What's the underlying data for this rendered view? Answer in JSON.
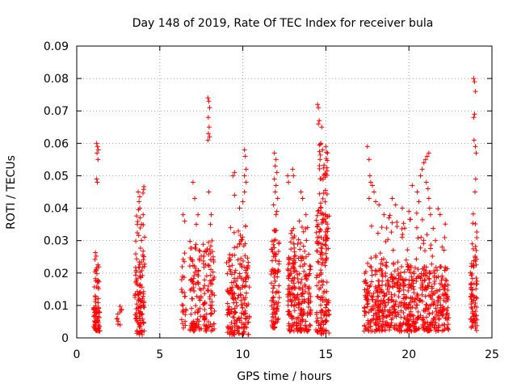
{
  "chart_data": {
    "type": "scatter",
    "title": "Day 148 of 2019, Rate Of TEC Index for receiver bula",
    "xlabel": "GPS time / hours",
    "ylabel": "ROTI / TECUs",
    "xlim": [
      0,
      25
    ],
    "ylim": [
      0,
      0.09
    ],
    "x_ticks": [
      {
        "value": 0,
        "label": "0"
      },
      {
        "value": 5,
        "label": "5"
      },
      {
        "value": 10,
        "label": "10"
      },
      {
        "value": 15,
        "label": "15"
      },
      {
        "value": 20,
        "label": "20"
      },
      {
        "value": 25,
        "label": "25"
      }
    ],
    "y_ticks": [
      {
        "value": 0,
        "label": "0"
      },
      {
        "value": 0.01,
        "label": "0.01"
      },
      {
        "value": 0.02,
        "label": "0.02"
      },
      {
        "value": 0.03,
        "label": "0.03"
      },
      {
        "value": 0.04,
        "label": "0.04"
      },
      {
        "value": 0.05,
        "label": "0.05"
      },
      {
        "value": 0.06,
        "label": "0.06"
      },
      {
        "value": 0.07,
        "label": "0.07"
      },
      {
        "value": 0.08,
        "label": "0.08"
      },
      {
        "value": 0.09,
        "label": "0.09"
      }
    ],
    "grid": true,
    "marker": "+",
    "series": [
      {
        "name": "ROTI",
        "color": "#ff0000",
        "clusters": [
          {
            "x_range": [
              1.0,
              1.4
            ],
            "y_range": [
              0.002,
              0.013
            ],
            "count": 60,
            "seed": 11
          },
          {
            "x_range": [
              1.05,
              1.35
            ],
            "y_range": [
              0.015,
              0.027
            ],
            "count": 20,
            "seed": 12
          },
          {
            "x_range": [
              2.4,
              2.7
            ],
            "y_range": [
              0.003,
              0.015
            ],
            "count": 10,
            "seed": 13
          },
          {
            "x_range": [
              3.5,
              4.1
            ],
            "y_range": [
              0.001,
              0.03
            ],
            "count": 110,
            "seed": 14
          },
          {
            "x_range": [
              3.6,
              4.1
            ],
            "y_range": [
              0.03,
              0.047
            ],
            "count": 15,
            "seed": 15
          },
          {
            "x_range": [
              6.3,
              6.6
            ],
            "y_range": [
              0.003,
              0.027
            ],
            "count": 25,
            "seed": 16
          },
          {
            "x_range": [
              6.8,
              7.5
            ],
            "y_range": [
              0.002,
              0.03
            ],
            "count": 90,
            "seed": 17
          },
          {
            "x_range": [
              7.6,
              8.3
            ],
            "y_range": [
              0.002,
              0.03
            ],
            "count": 90,
            "seed": 18
          },
          {
            "x_range": [
              9.0,
              10.4
            ],
            "y_range": [
              0.001,
              0.025
            ],
            "count": 180,
            "seed": 19
          },
          {
            "x_range": [
              9.1,
              10.2
            ],
            "y_range": [
              0.025,
              0.035
            ],
            "count": 20,
            "seed": 20
          },
          {
            "x_range": [
              11.7,
              12.2
            ],
            "y_range": [
              0.003,
              0.035
            ],
            "count": 90,
            "seed": 21
          },
          {
            "x_range": [
              12.7,
              14.1
            ],
            "y_range": [
              0.002,
              0.025
            ],
            "count": 220,
            "seed": 22
          },
          {
            "x_range": [
              12.8,
              14.0
            ],
            "y_range": [
              0.025,
              0.035
            ],
            "count": 25,
            "seed": 23
          },
          {
            "x_range": [
              14.4,
              15.2
            ],
            "y_range": [
              0.001,
              0.04
            ],
            "count": 160,
            "seed": 24
          },
          {
            "x_range": [
              14.6,
              15.1
            ],
            "y_range": [
              0.04,
              0.06
            ],
            "count": 30,
            "seed": 25
          },
          {
            "x_range": [
              17.3,
              22.4
            ],
            "y_range": [
              0.002,
              0.022
            ],
            "count": 650,
            "seed": 26
          },
          {
            "x_range": [
              17.5,
              22.2
            ],
            "y_range": [
              0.022,
              0.04
            ],
            "count": 60,
            "seed": 27
          },
          {
            "x_range": [
              23.7,
              24.1
            ],
            "y_range": [
              0.002,
              0.025
            ],
            "count": 70,
            "seed": 28
          },
          {
            "x_range": [
              23.8,
              24.1
            ],
            "y_range": [
              0.025,
              0.04
            ],
            "count": 10,
            "seed": 29
          }
        ],
        "points": [
          [
            1.2,
            0.06
          ],
          [
            1.25,
            0.059
          ],
          [
            1.3,
            0.058
          ],
          [
            1.22,
            0.057
          ],
          [
            1.28,
            0.055
          ],
          [
            1.2,
            0.049
          ],
          [
            1.24,
            0.048
          ],
          [
            3.7,
            0.045
          ],
          [
            3.75,
            0.042
          ],
          [
            3.8,
            0.04
          ],
          [
            4.0,
            0.038
          ],
          [
            3.65,
            0.035
          ],
          [
            6.4,
            0.038
          ],
          [
            6.5,
            0.036
          ],
          [
            7.0,
            0.048
          ],
          [
            7.1,
            0.043
          ],
          [
            7.2,
            0.035
          ],
          [
            7.3,
            0.038
          ],
          [
            7.9,
            0.074
          ],
          [
            7.95,
            0.073
          ],
          [
            8.0,
            0.071
          ],
          [
            7.92,
            0.068
          ],
          [
            7.97,
            0.065
          ],
          [
            7.93,
            0.063
          ],
          [
            7.9,
            0.061
          ],
          [
            8.0,
            0.062
          ],
          [
            7.95,
            0.045
          ],
          [
            8.1,
            0.038
          ],
          [
            8.05,
            0.035
          ],
          [
            9.4,
            0.05
          ],
          [
            9.5,
            0.051
          ],
          [
            9.5,
            0.044
          ],
          [
            10.1,
            0.058
          ],
          [
            10.15,
            0.056
          ],
          [
            10.2,
            0.052
          ],
          [
            10.1,
            0.05
          ],
          [
            10.2,
            0.048
          ],
          [
            10.1,
            0.045
          ],
          [
            10.0,
            0.042
          ],
          [
            9.8,
            0.04
          ],
          [
            11.9,
            0.057
          ],
          [
            12.0,
            0.055
          ],
          [
            11.95,
            0.053
          ],
          [
            12.05,
            0.051
          ],
          [
            11.9,
            0.049
          ],
          [
            12.0,
            0.047
          ],
          [
            11.95,
            0.045
          ],
          [
            12.1,
            0.043
          ],
          [
            11.85,
            0.041
          ],
          [
            12.05,
            0.039
          ],
          [
            12.0,
            0.038
          ],
          [
            12.7,
            0.05
          ],
          [
            12.75,
            0.048
          ],
          [
            13.0,
            0.052
          ],
          [
            13.05,
            0.05
          ],
          [
            13.5,
            0.045
          ],
          [
            13.6,
            0.043
          ],
          [
            13.8,
            0.038
          ],
          [
            13.9,
            0.034
          ],
          [
            13.4,
            0.036
          ],
          [
            14.5,
            0.072
          ],
          [
            14.55,
            0.071
          ],
          [
            14.6,
            0.067
          ],
          [
            14.55,
            0.066
          ],
          [
            14.7,
            0.06
          ],
          [
            14.8,
            0.058
          ],
          [
            14.65,
            0.055
          ],
          [
            15.0,
            0.059
          ],
          [
            15.1,
            0.057
          ],
          [
            14.75,
            0.065
          ],
          [
            17.5,
            0.059
          ],
          [
            17.6,
            0.055
          ],
          [
            17.65,
            0.05
          ],
          [
            17.7,
            0.048
          ],
          [
            17.8,
            0.047
          ],
          [
            17.9,
            0.045
          ],
          [
            17.6,
            0.043
          ],
          [
            18.0,
            0.042
          ],
          [
            18.2,
            0.041
          ],
          [
            18.5,
            0.038
          ],
          [
            18.8,
            0.037
          ],
          [
            19.0,
            0.043
          ],
          [
            19.2,
            0.041
          ],
          [
            19.6,
            0.04
          ],
          [
            20.0,
            0.039
          ],
          [
            20.2,
            0.047
          ],
          [
            20.5,
            0.045
          ],
          [
            20.6,
            0.042
          ],
          [
            20.7,
            0.05
          ],
          [
            20.8,
            0.052
          ],
          [
            20.9,
            0.054
          ],
          [
            21.0,
            0.055
          ],
          [
            21.1,
            0.056
          ],
          [
            21.2,
            0.057
          ],
          [
            21.05,
            0.048
          ],
          [
            21.15,
            0.046
          ],
          [
            21.2,
            0.043
          ],
          [
            21.25,
            0.04
          ],
          [
            21.3,
            0.038
          ],
          [
            21.6,
            0.03
          ],
          [
            22.0,
            0.028
          ],
          [
            23.9,
            0.08
          ],
          [
            23.95,
            0.079
          ],
          [
            24.0,
            0.076
          ],
          [
            23.95,
            0.069
          ],
          [
            23.9,
            0.068
          ],
          [
            23.92,
            0.061
          ],
          [
            24.0,
            0.059
          ],
          [
            24.05,
            0.057
          ],
          [
            24.02,
            0.049
          ],
          [
            23.98,
            0.045
          ]
        ]
      }
    ]
  }
}
